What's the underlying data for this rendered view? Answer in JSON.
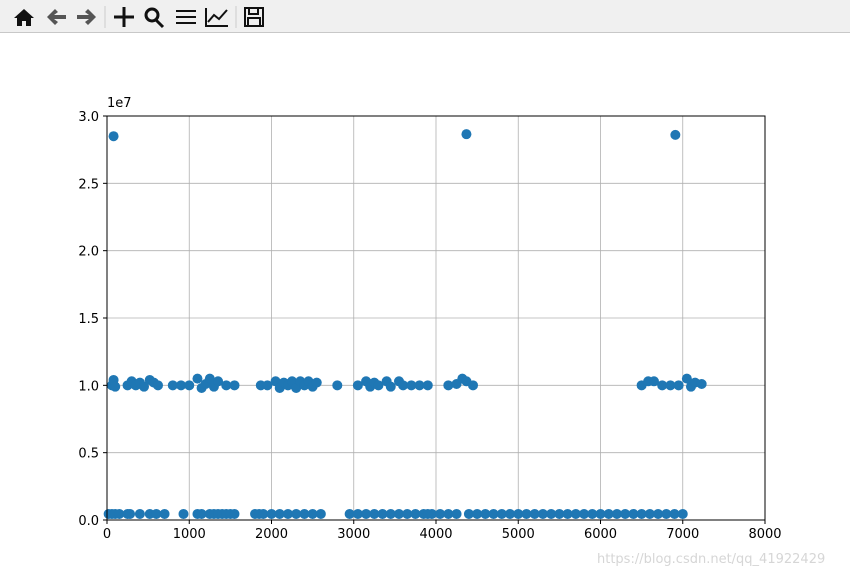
{
  "chart_data": {
    "type": "scatter",
    "y_offset_label": "1e7",
    "watermark": "https://blog.csdn.net/qq_41922429",
    "xlim": [
      0,
      8000
    ],
    "xticks": [
      0,
      1000,
      2000,
      3000,
      4000,
      5000,
      6000,
      7000,
      8000
    ],
    "ylim": [
      0,
      30000000
    ],
    "yticks": [
      {
        "value": 0,
        "label": "0.0"
      },
      {
        "value": 5000000,
        "label": "0.5"
      },
      {
        "value": 10000000,
        "label": "1.0"
      },
      {
        "value": 15000000,
        "label": "1.5"
      },
      {
        "value": 20000000,
        "label": "2.0"
      },
      {
        "value": 25000000,
        "label": "2.5"
      },
      {
        "value": 30000000,
        "label": "3.0"
      }
    ],
    "grid": true,
    "x": [
      60,
      80,
      100,
      250,
      300,
      350,
      400,
      450,
      520,
      570,
      620,
      800,
      900,
      1000,
      1100,
      1150,
      1200,
      1250,
      1300,
      1350,
      1450,
      1550,
      1870,
      1950,
      2050,
      2100,
      2150,
      2200,
      2250,
      2300,
      2350,
      2400,
      2450,
      2500,
      2550,
      2800,
      3050,
      3150,
      3200,
      3250,
      3300,
      3400,
      3450,
      3550,
      3600,
      3700,
      3800,
      3900,
      4150,
      4250,
      4320,
      4370,
      4450,
      6500,
      6580,
      6650,
      6750,
      6850,
      6950,
      7050,
      7100,
      7150,
      7230,
      20,
      60,
      100,
      150,
      250,
      280,
      400,
      520,
      600,
      700,
      930,
      1100,
      1150,
      1250,
      1300,
      1350,
      1400,
      1450,
      1500,
      1550,
      1800,
      1850,
      1900,
      2000,
      2100,
      2200,
      2300,
      2400,
      2500,
      2600,
      2950,
      3050,
      3150,
      3250,
      3350,
      3450,
      3550,
      3650,
      3750,
      3850,
      3900,
      3950,
      4050,
      4150,
      4250,
      4400,
      4500,
      4600,
      4700,
      4800,
      4900,
      5000,
      5100,
      5200,
      5300,
      5400,
      5500,
      5600,
      5700,
      5800,
      5900,
      6000,
      6100,
      6200,
      6300,
      6400,
      6500,
      6600,
      6700,
      6800,
      6900,
      7000,
      80,
      4370,
      6910
    ],
    "series": [
      {
        "color": "#1f77b4",
        "values": [
          10000000,
          10400000,
          9900000,
          10000000,
          10300000,
          10000000,
          10200000,
          9900000,
          10400000,
          10200000,
          10000000,
          10000000,
          10000000,
          10000000,
          10500000,
          9800000,
          10100000,
          10500000,
          9900000,
          10300000,
          10000000,
          10000000,
          10000000,
          10000000,
          10300000,
          9800000,
          10200000,
          10000000,
          10300000,
          9800000,
          10300000,
          10000000,
          10300000,
          9900000,
          10200000,
          10000000,
          10000000,
          10300000,
          9900000,
          10200000,
          10000000,
          10300000,
          9900000,
          10300000,
          10000000,
          10000000,
          10000000,
          10000000,
          10000000,
          10100000,
          10500000,
          10300000,
          10000000,
          10000000,
          10300000,
          10300000,
          10000000,
          10000000,
          10000000,
          10500000,
          9900000,
          10200000,
          10100000,
          450000,
          450000,
          450000,
          450000,
          450000,
          450000,
          450000,
          450000,
          450000,
          450000,
          450000,
          450000,
          450000,
          450000,
          450000,
          450000,
          450000,
          450000,
          450000,
          450000,
          450000,
          450000,
          450000,
          450000,
          450000,
          450000,
          450000,
          450000,
          450000,
          450000,
          450000,
          450000,
          450000,
          450000,
          450000,
          450000,
          450000,
          450000,
          450000,
          450000,
          450000,
          450000,
          450000,
          450000,
          450000,
          450000,
          450000,
          450000,
          450000,
          450000,
          450000,
          450000,
          450000,
          450000,
          450000,
          450000,
          450000,
          450000,
          450000,
          450000,
          450000,
          450000,
          450000,
          450000,
          450000,
          450000,
          450000,
          450000,
          450000,
          450000,
          450000,
          450000,
          28500000,
          28650000,
          28600000
        ]
      }
    ]
  }
}
